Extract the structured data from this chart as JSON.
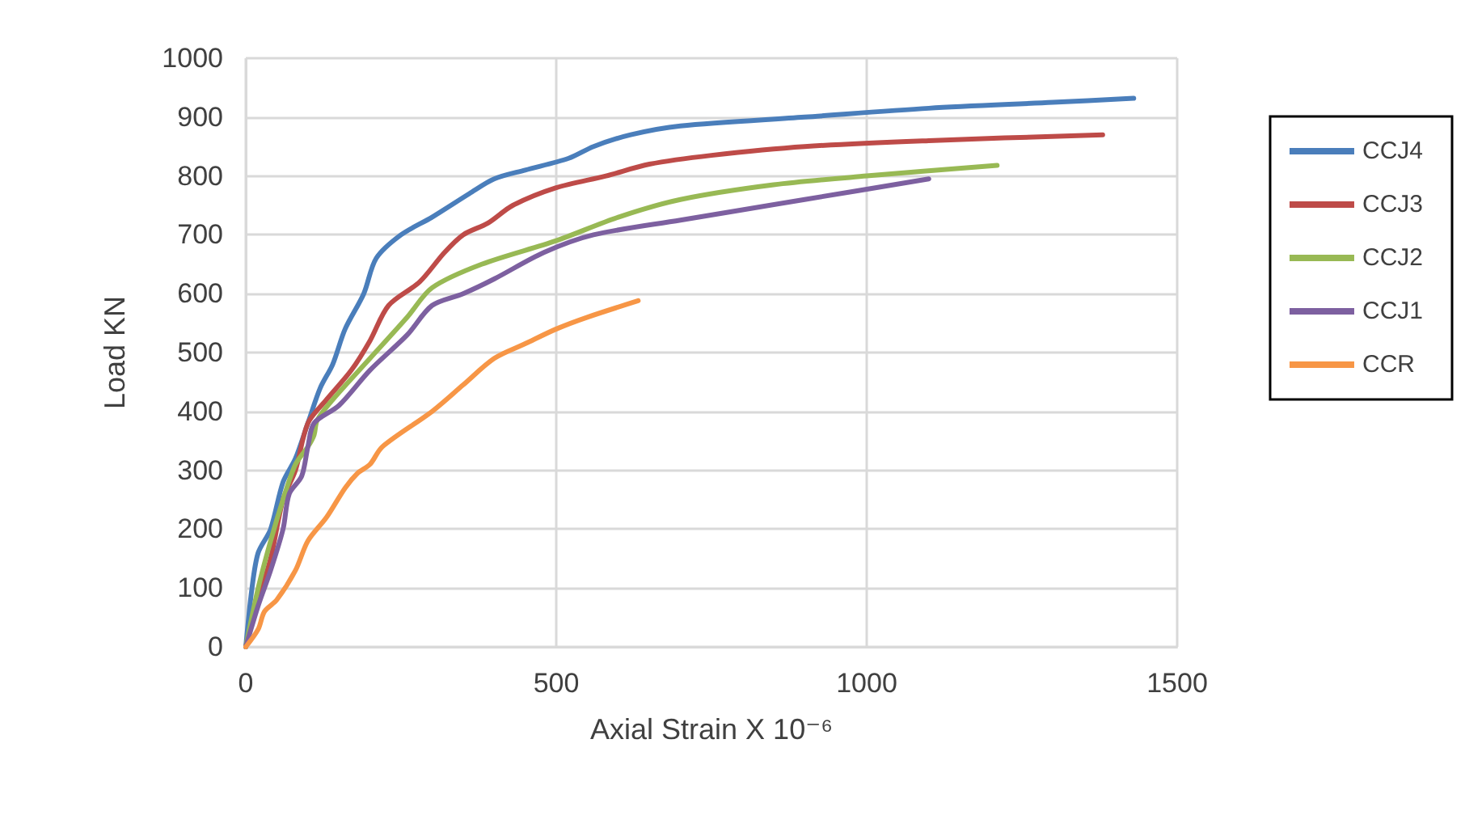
{
  "chart_data": {
    "type": "line",
    "xlabel": "Axial Strain X 10⁻⁶",
    "ylabel": "Load KN",
    "xlim": [
      0,
      1500
    ],
    "xticks": [
      0,
      500,
      1000,
      1500
    ],
    "ylim": [
      0,
      1000
    ],
    "yticks": [
      0,
      100,
      200,
      300,
      400,
      500,
      600,
      700,
      800,
      900,
      1000
    ],
    "grid": true,
    "legend": "right",
    "marker": "none",
    "line_style": "solid",
    "series": [
      {
        "name": "CCJ4",
        "color": "#4a7ebb",
        "x": [
          0,
          10,
          20,
          40,
          60,
          80,
          100,
          120,
          140,
          160,
          190,
          210,
          250,
          300,
          360,
          400,
          450,
          520,
          560,
          620,
          700,
          900,
          1100,
          1300,
          1430
        ],
        "values": [
          0,
          100,
          160,
          200,
          280,
          320,
          380,
          440,
          480,
          540,
          600,
          660,
          700,
          730,
          770,
          795,
          810,
          830,
          850,
          870,
          885,
          900,
          915,
          925,
          932
        ]
      },
      {
        "name": "CCJ3",
        "color": "#be4b48",
        "x": [
          0,
          20,
          40,
          60,
          80,
          100,
          130,
          170,
          200,
          230,
          280,
          320,
          350,
          390,
          430,
          500,
          580,
          650,
          750,
          900,
          1100,
          1380
        ],
        "values": [
          0,
          80,
          150,
          250,
          300,
          380,
          420,
          470,
          520,
          580,
          620,
          670,
          700,
          720,
          750,
          780,
          800,
          820,
          835,
          850,
          860,
          870
        ]
      },
      {
        "name": "CCJ2",
        "color": "#98b954",
        "x": [
          0,
          20,
          40,
          60,
          80,
          100,
          110,
          115,
          140,
          200,
          260,
          300,
          380,
          500,
          600,
          700,
          850,
          1000,
          1210
        ],
        "values": [
          0,
          100,
          180,
          250,
          310,
          340,
          360,
          385,
          420,
          490,
          560,
          610,
          650,
          690,
          730,
          760,
          785,
          800,
          818
        ]
      },
      {
        "name": "CCJ1",
        "color": "#7d60a0",
        "x": [
          0,
          20,
          40,
          60,
          70,
          90,
          100,
          110,
          150,
          200,
          260,
          300,
          350,
          400,
          480,
          560,
          700,
          900,
          1100
        ],
        "values": [
          0,
          70,
          130,
          200,
          260,
          290,
          340,
          380,
          410,
          470,
          530,
          580,
          600,
          625,
          670,
          700,
          725,
          760,
          795
        ]
      },
      {
        "name": "CCR",
        "color": "#f79646",
        "x": [
          0,
          20,
          30,
          50,
          80,
          100,
          130,
          160,
          180,
          200,
          220,
          300,
          350,
          400,
          450,
          500,
          550,
          632
        ],
        "values": [
          0,
          30,
          60,
          80,
          130,
          180,
          220,
          270,
          295,
          310,
          340,
          400,
          445,
          490,
          515,
          540,
          560,
          588
        ]
      }
    ]
  }
}
